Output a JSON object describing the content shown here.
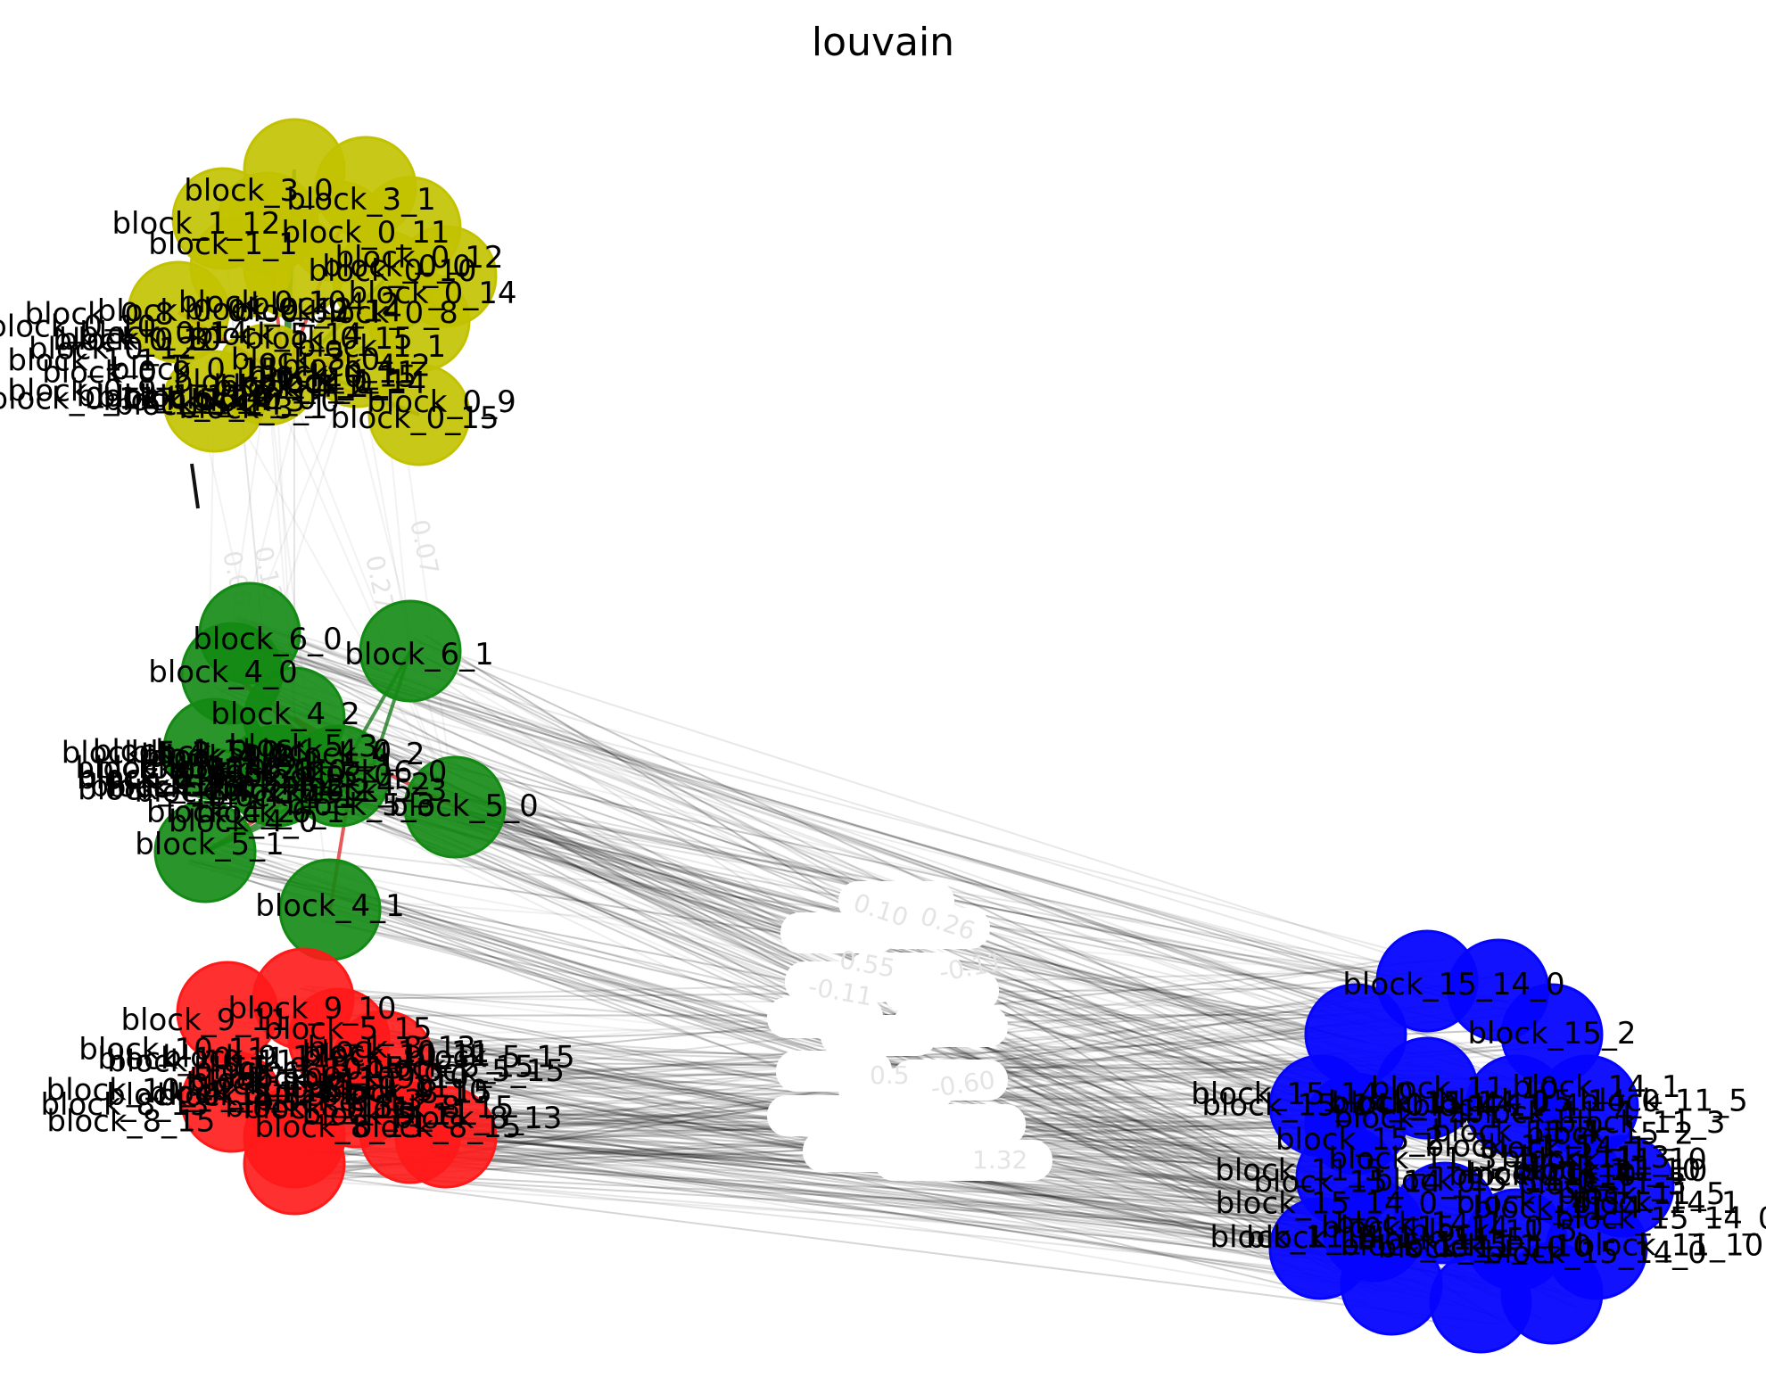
{
  "title": "louvain",
  "colors": {
    "c0": "#c2c200",
    "c1": "#138a13",
    "c2": "#ff1a1a",
    "c3": "#0505ff",
    "edge_inter": "#000000",
    "edge_neg": "#e23030",
    "edge_pos": "#1c7a1c",
    "edge_label": "#e4e4e4"
  },
  "communities": [
    {
      "name": "yellow",
      "color_key": "c0",
      "labels": [
        "block_3_0",
        "block_3_1",
        "block_1_12",
        "block_0_11",
        "block_1_1",
        "block_0_12",
        "block_0_10",
        "block_0_0",
        "block_0_14",
        "block_0_8",
        "block_0_9",
        "block_0_15",
        "block_5_14",
        "block_4_2"
      ]
    },
    {
      "name": "green",
      "color_key": "c1",
      "labels": [
        "block_6_0",
        "block_6_1",
        "block_4_0",
        "block_4_2",
        "block_5_3",
        "block_5_0",
        "block_5_1",
        "block_4_1"
      ]
    },
    {
      "name": "red",
      "color_key": "c2",
      "labels": [
        "block_9_10",
        "block_9_11",
        "block_5_15",
        "block_10_11",
        "block_8_13",
        "block_8_15"
      ]
    },
    {
      "name": "blue",
      "color_key": "c3",
      "labels": [
        "block_15_14_0",
        "block_15_2",
        "block_14_1",
        "block_11_4",
        "block_11_3",
        "block_11_5",
        "block_11_10"
      ]
    }
  ],
  "edge_labels": [
    "0.26",
    "0.10",
    "-0.11",
    "0.55",
    "-0.11",
    "-0.60",
    "0.5",
    "1.32",
    "0.07",
    "0.27",
    "0.06",
    "0.13"
  ]
}
